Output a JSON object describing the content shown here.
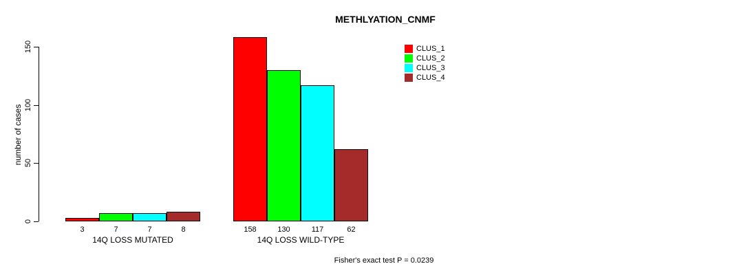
{
  "chart_data": {
    "type": "bar",
    "title": "METHLYATION_CNMF",
    "ylabel": "number of cases",
    "xlabel": "",
    "ylim": [
      0,
      150
    ],
    "yticks": [
      0,
      50,
      100,
      150
    ],
    "grid": false,
    "legend_position": "top-right",
    "categories": [
      "14Q LOSS MUTATED",
      "14Q LOSS WILD-TYPE"
    ],
    "series": [
      {
        "name": "CLUS_1",
        "color": "#FF0000",
        "values": [
          3,
          158
        ]
      },
      {
        "name": "CLUS_2",
        "color": "#00FF00",
        "values": [
          7,
          130
        ]
      },
      {
        "name": "CLUS_3",
        "color": "#00FFFF",
        "values": [
          7,
          117
        ]
      },
      {
        "name": "CLUS_4",
        "color": "#A52A2A",
        "values": [
          8,
          62
        ]
      }
    ],
    "bar_value_labels": [
      [
        "3",
        "7",
        "7",
        "8"
      ],
      [
        "158",
        "130",
        "117",
        "62"
      ]
    ],
    "annotation": "Fisher's exact test P = 0.0239",
    "colors": {
      "background": "#FFFFFF",
      "axis": "#000000",
      "bar_border": "#000000",
      "text": "#000000"
    }
  }
}
